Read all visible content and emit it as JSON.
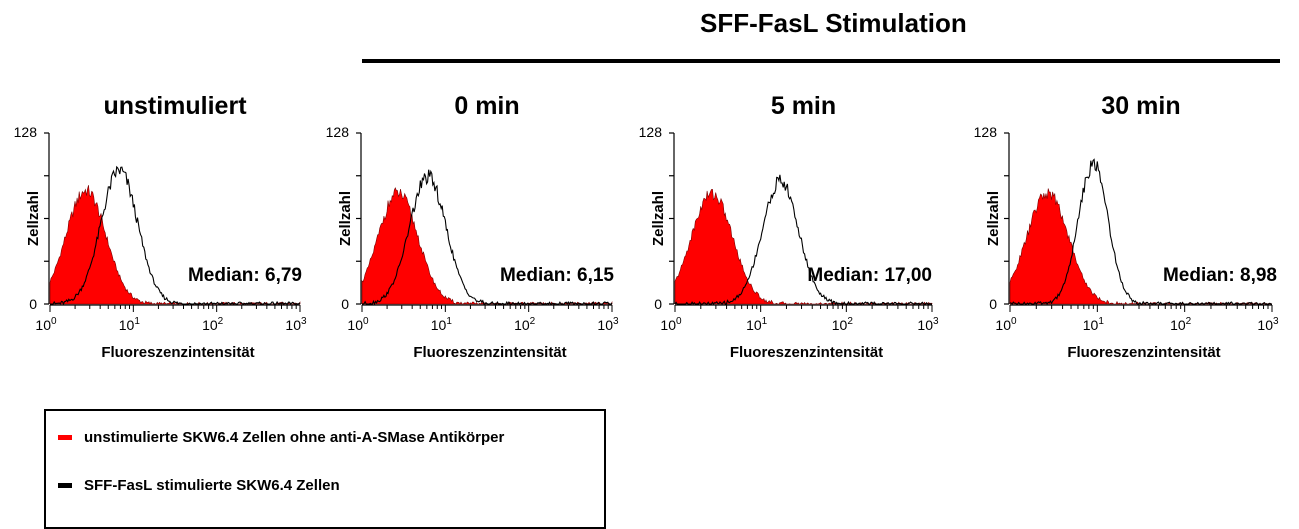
{
  "header": {
    "title": "SFF-FasL Stimulation"
  },
  "colors": {
    "red_fill": "#ff0000",
    "black_line": "#000000"
  },
  "chart_data": [
    {
      "type": "area",
      "title": "unstimuliert",
      "xlabel": "Fluoreszenzintensität",
      "ylabel": "Zellzahl",
      "x_scale": "log",
      "xlim": [
        1,
        1000
      ],
      "ylim": [
        0,
        128
      ],
      "y_ticks": [
        "0",
        "128"
      ],
      "x_ticks": [
        "10^0",
        "10^1",
        "10^2",
        "10^3"
      ],
      "annotation": "Median: 6,79",
      "series": [
        {
          "color": "#ff0000",
          "fill": true,
          "peak_x": 2.7,
          "peak_y": 85,
          "width_decades": 0.24
        },
        {
          "color": "#000000",
          "fill": false,
          "peak_x": 6.79,
          "peak_y": 100,
          "width_decades": 0.22
        }
      ]
    },
    {
      "type": "area",
      "title": "0 min",
      "xlabel": "Fluoreszenzintensität",
      "ylabel": "Zellzahl",
      "x_scale": "log",
      "xlim": [
        1,
        1000
      ],
      "ylim": [
        0,
        128
      ],
      "y_ticks": [
        "0",
        "128"
      ],
      "x_ticks": [
        "10^0",
        "10^1",
        "10^2",
        "10^3"
      ],
      "annotation": "Median: 6,15",
      "series": [
        {
          "color": "#ff0000",
          "fill": true,
          "peak_x": 2.7,
          "peak_y": 83,
          "width_decades": 0.24
        },
        {
          "color": "#000000",
          "fill": false,
          "peak_x": 6.15,
          "peak_y": 95,
          "width_decades": 0.22
        }
      ]
    },
    {
      "type": "area",
      "title": "5 min",
      "xlabel": "Fluoreszenzintensität",
      "ylabel": "Zellzahl",
      "x_scale": "log",
      "xlim": [
        1,
        1000
      ],
      "ylim": [
        0,
        128
      ],
      "y_ticks": [
        "0",
        "128"
      ],
      "x_ticks": [
        "10^0",
        "10^1",
        "10^2",
        "10^3"
      ],
      "annotation": "Median: 17,00",
      "series": [
        {
          "color": "#ff0000",
          "fill": true,
          "peak_x": 2.7,
          "peak_y": 83,
          "width_decades": 0.24
        },
        {
          "color": "#000000",
          "fill": false,
          "peak_x": 17.0,
          "peak_y": 92,
          "width_decades": 0.21
        }
      ]
    },
    {
      "type": "area",
      "title": "30 min",
      "xlabel": "Fluoreszenzintensität",
      "ylabel": "Zellzahl",
      "x_scale": "log",
      "xlim": [
        1,
        1000
      ],
      "ylim": [
        0,
        128
      ],
      "y_ticks": [
        "0",
        "128"
      ],
      "x_ticks": [
        "10^0",
        "10^1",
        "10^2",
        "10^3"
      ],
      "annotation": "Median: 8,98",
      "series": [
        {
          "color": "#ff0000",
          "fill": true,
          "peak_x": 2.7,
          "peak_y": 83,
          "width_decades": 0.24
        },
        {
          "color": "#000000",
          "fill": false,
          "peak_x": 8.98,
          "peak_y": 105,
          "width_decades": 0.17
        }
      ]
    }
  ],
  "legend": {
    "items": [
      {
        "label": "unstimulierte SKW6.4 Zellen ohne anti-A-SMase Antikörper",
        "color": "#ff0000"
      },
      {
        "label": "SFF-FasL stimulierte SKW6.4 Zellen",
        "color": "#000000"
      }
    ]
  }
}
